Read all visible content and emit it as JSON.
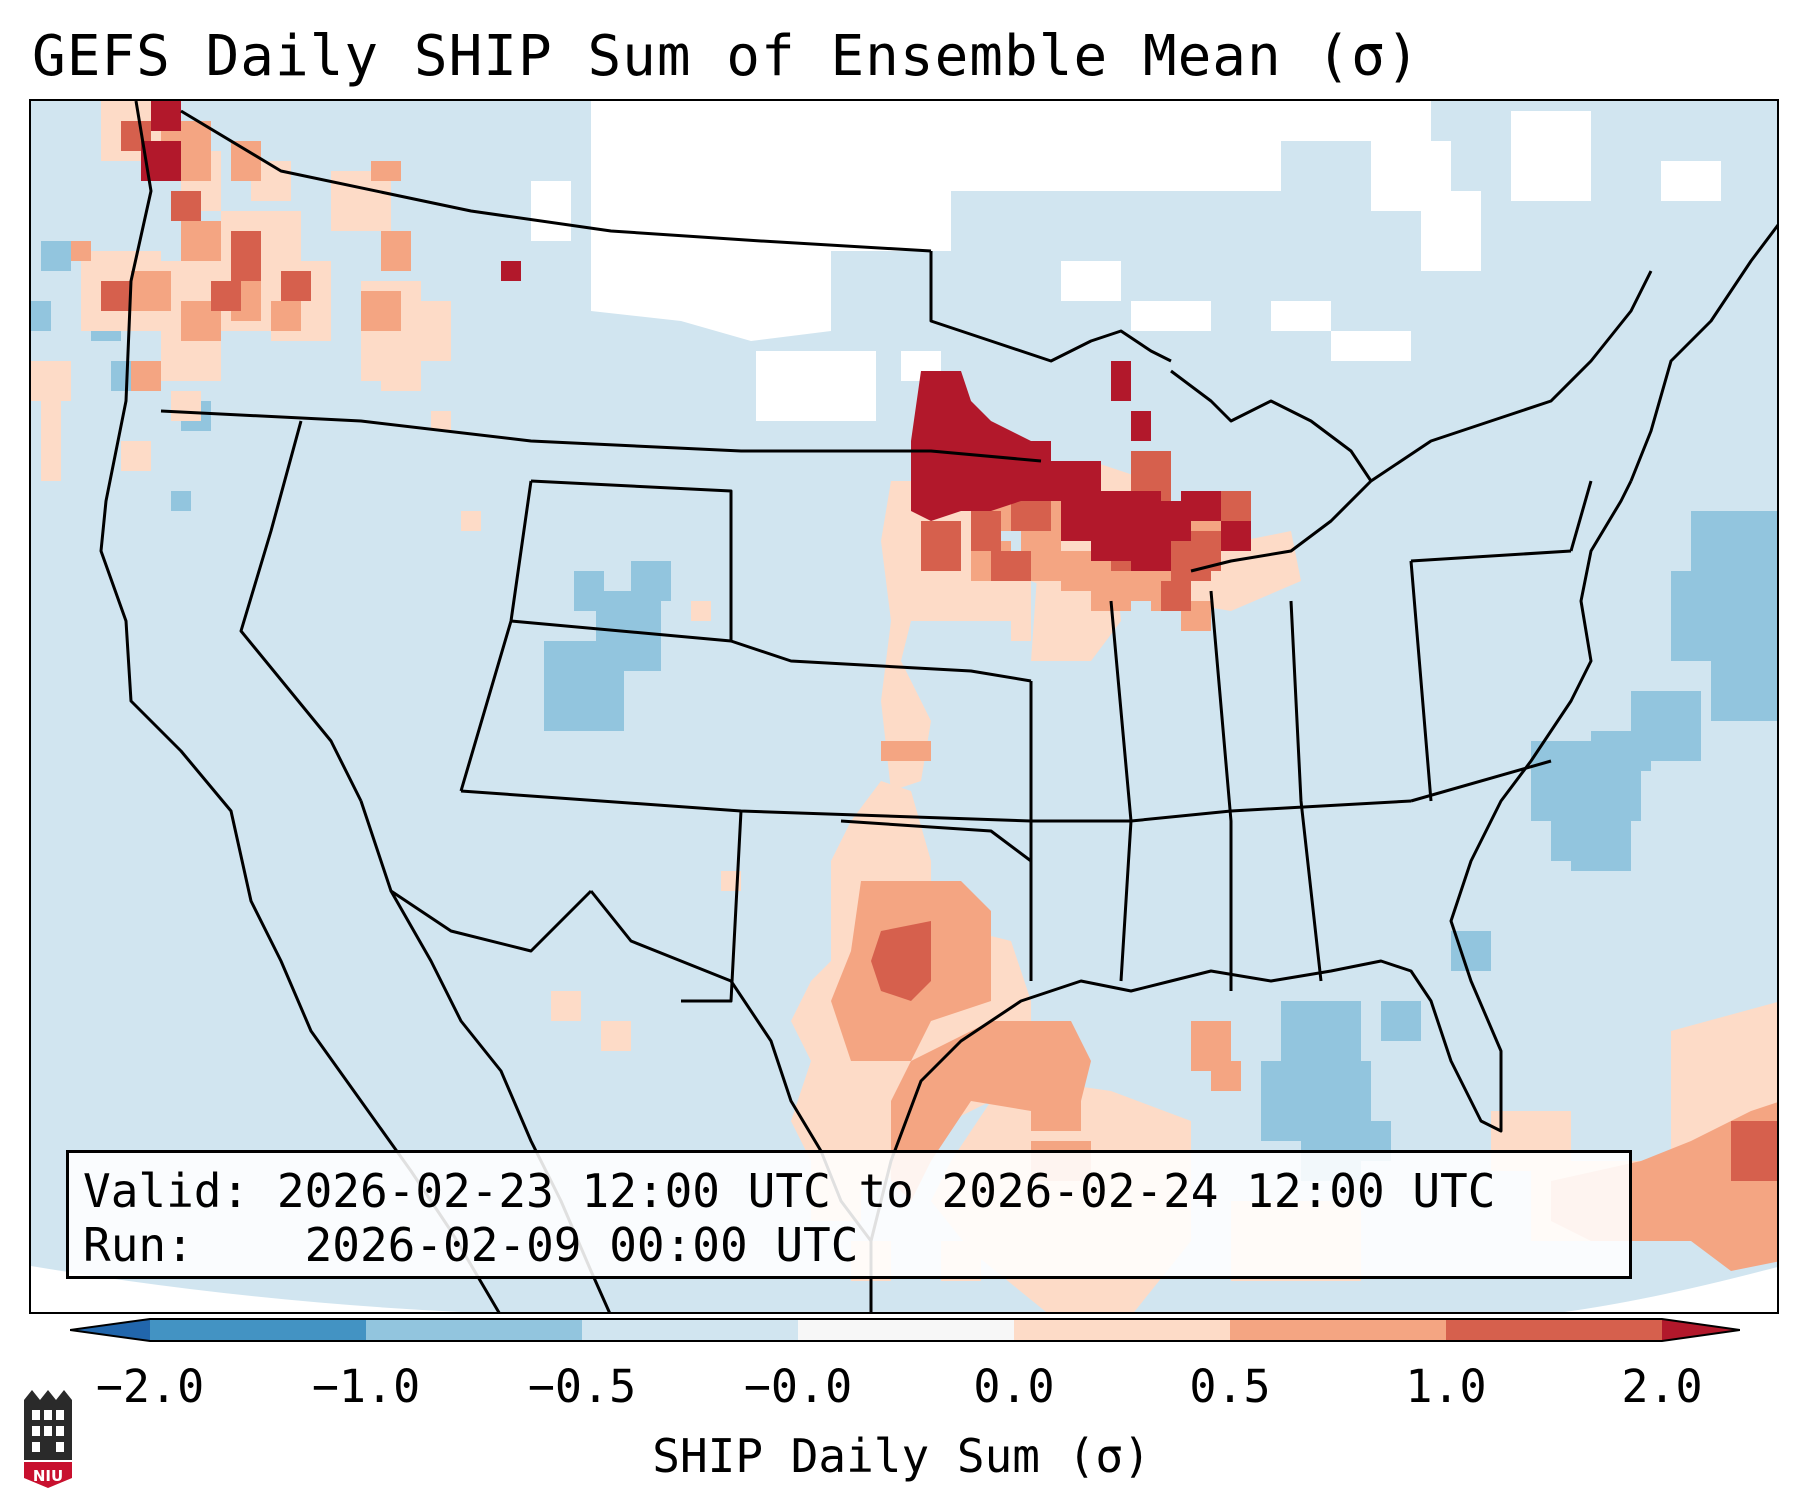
{
  "title": "GEFS Daily SHIP Sum of Ensemble Mean (σ)",
  "info": {
    "valid_label": "Valid:",
    "valid_value": "2026-02-23 12:00 UTC to 2026-02-24 12:00 UTC",
    "run_label": "Run:",
    "run_value": "2026-02-09 00:00 UTC"
  },
  "colorbar": {
    "label": "SHIP Daily Sum (σ)",
    "ticks": [
      "−2.0",
      "−1.0",
      "−0.5",
      "−0.0",
      "0.0",
      "0.5",
      "1.0",
      "2.0"
    ],
    "bins": [
      {
        "range": "< -2.0",
        "color": "#2166ac"
      },
      {
        "range": "-2.0 to -1.0",
        "color": "#4393c3"
      },
      {
        "range": "-1.0 to -0.5",
        "color": "#92c5de"
      },
      {
        "range": "-0.5 to -0.0",
        "color": "#d1e5f0"
      },
      {
        "range": "-0.0 to 0.0",
        "color": "#f7f7f7"
      },
      {
        "range": "0.0 to 0.5",
        "color": "#fddbc7"
      },
      {
        "range": "0.5 to 1.0",
        "color": "#f4a582"
      },
      {
        "range": "1.0 to 2.0",
        "color": "#d6604d"
      },
      {
        "range": "> 2.0",
        "color": "#b2182b"
      }
    ]
  },
  "logo_text": "NIU",
  "colors": {
    "background_field": "#d1e5f0",
    "neutral": "#ffffff",
    "high": "#b2182b",
    "med_high": "#d6604d",
    "mod": "#f4a582",
    "low_pos": "#fddbc7",
    "low_neg": "#92c5de"
  }
}
